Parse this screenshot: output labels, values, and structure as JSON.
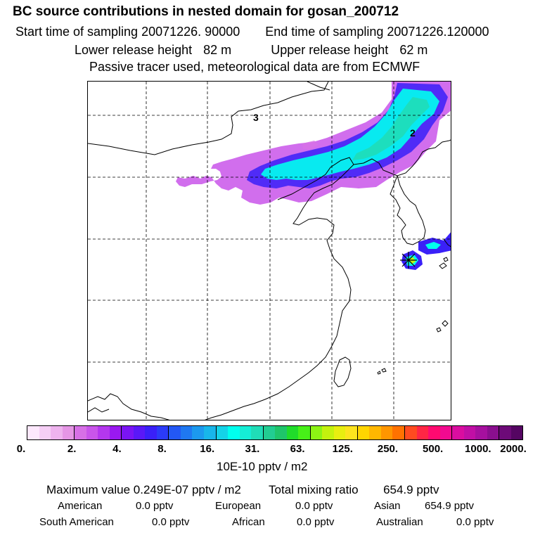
{
  "header": {
    "title": "BC  source contributions in nested domain for gosan_200712",
    "start_time_label": "Start time of sampling",
    "start_time": "20071226. 90000",
    "end_time_label": "End time of sampling",
    "end_time": "20071226.120000",
    "lower_height_label": "Lower release height",
    "lower_height": "82 m",
    "upper_height_label": "Upper release height",
    "upper_height": "62 m",
    "note": "Passive tracer used, meteorological data are from ECMWF"
  },
  "map": {
    "day_labels": [
      "3",
      "2"
    ],
    "colors": {
      "coast": "#000000",
      "grid": "#000000",
      "receptor_marker": "#000000"
    }
  },
  "colorbar": {
    "colors": [
      "#fde8fd",
      "#f6cff6",
      "#eeb3ee",
      "#e596e5",
      "#d770e6",
      "#c955ea",
      "#b437ee",
      "#9a19f0",
      "#7a14f4",
      "#5a18f7",
      "#3a20f8",
      "#2b3bf8",
      "#2358f5",
      "#1f78f1",
      "#1c99ee",
      "#18b6ea",
      "#14d3e8",
      "#00ffee",
      "#15eed6",
      "#20ddb7",
      "#22cd92",
      "#1fc56a",
      "#20dc2a",
      "#47f018",
      "#8cf314",
      "#c4f20e",
      "#e8ee10",
      "#fde31e",
      "#ffd500",
      "#ffb700",
      "#ff9600",
      "#ff7200",
      "#ff4b20",
      "#ff2645",
      "#ff0a70",
      "#f20a90",
      "#da0da0",
      "#c10fa5",
      "#a6109f",
      "#8a0f8f",
      "#6d0a78",
      "#550562"
    ],
    "tick_labels": [
      "0.",
      "2.",
      "4.",
      "8.",
      "16.",
      "31.",
      "63.",
      "125.",
      "250.",
      "500.",
      "1000.",
      "2000."
    ],
    "units": "10E-10 pptv / m2"
  },
  "stats": {
    "max_label": "Maximum value",
    "max_value": "0.249E-07 pptv / m2",
    "total_label": "Total mixing ratio",
    "total_value": "654.9 pptv",
    "regions": [
      {
        "name": "American",
        "value": "0.0 pptv"
      },
      {
        "name": "European",
        "value": "0.0 pptv"
      },
      {
        "name": "Asian",
        "value": "654.9 pptv"
      },
      {
        "name": "South American",
        "value": "0.0 pptv"
      },
      {
        "name": "African",
        "value": "0.0 pptv"
      },
      {
        "name": "Australian",
        "value": "0.0 pptv"
      }
    ]
  }
}
